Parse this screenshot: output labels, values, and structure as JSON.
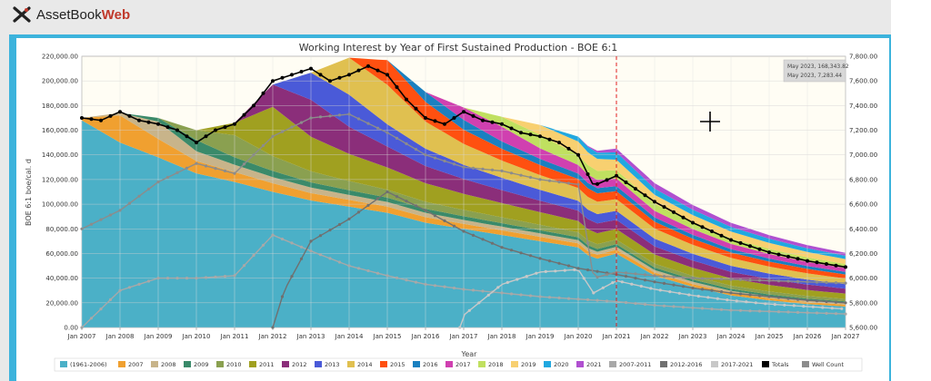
{
  "app": {
    "brand_main": "AssetBook",
    "brand_accent": "Web"
  },
  "chart_data": {
    "type": "area",
    "title": "Working Interest by Year of First Sustained Production - BOE 6:1",
    "xlabel": "Year",
    "ylabel": "BOE 6:1 boe/cal. d",
    "y2label": "",
    "ylim": [
      0,
      220000
    ],
    "y2lim": [
      5600,
      7800
    ],
    "y_ticks": [
      "0.00",
      "20,000.00",
      "40,000.00",
      "60,000.00",
      "80,000.00",
      "100,000.00",
      "120,000.00",
      "140,000.00",
      "160,000.00",
      "180,000.00",
      "200,000.00",
      "220,000.00"
    ],
    "y2_ticks": [
      "5,600.00",
      "5,800.00",
      "6,000.00",
      "6,200.00",
      "6,400.00",
      "6,600.00",
      "6,800.00",
      "7,000.00",
      "7,200.00",
      "7,400.00",
      "7,600.00",
      "7,800.00"
    ],
    "x_ticks": [
      "Jan 2007",
      "Jan 2008",
      "Jan 2009",
      "Jan 2010",
      "Jan 2011",
      "Jan 2012",
      "Jan 2013",
      "Jan 2014",
      "Jan 2015",
      "Jan 2016",
      "Jan 2017",
      "Jan 2018",
      "Jan 2019",
      "Jan 2020",
      "Jan 2021",
      "Jan 2022",
      "Jan 2023",
      "Jan 2024",
      "Jan 2025",
      "Jan 2026",
      "Jan 2027"
    ],
    "x_start": 2007,
    "x_end": 2027,
    "marker_year": 2021.0,
    "grid": true,
    "legend_position": "bottom",
    "tooltip": [
      "May 2023, 168,343.82",
      "May 2023, 7,283.44"
    ],
    "series": [
      {
        "name": "(1961-2006)",
        "color": "#4bb0c7",
        "x": [
          2007,
          2008,
          2009,
          2010,
          2011,
          2012,
          2013,
          2014,
          2015,
          2016,
          2017,
          2018,
          2019,
          2020,
          2020.4,
          2021,
          2022,
          2023,
          2024,
          2025,
          2026,
          2027
        ],
        "values": [
          168000,
          150000,
          138000,
          125000,
          118000,
          110000,
          103000,
          98000,
          93000,
          85000,
          80000,
          75000,
          70000,
          65000,
          55000,
          60000,
          42000,
          33000,
          26000,
          22000,
          19000,
          17000
        ]
      },
      {
        "name": "2007",
        "color": "#f0a030",
        "x": [
          2007,
          2008,
          2009,
          2010,
          2011,
          2012,
          2013,
          2014,
          2015,
          2016,
          2017,
          2018,
          2019,
          2020,
          2021,
          2022,
          2023,
          2024,
          2025,
          2026,
          2027
        ],
        "values": [
          2000,
          22000,
          15000,
          10000,
          8000,
          7000,
          6000,
          5500,
          5000,
          4500,
          4000,
          3800,
          3500,
          3200,
          3000,
          2500,
          2200,
          2000,
          1800,
          1600,
          1500
        ]
      },
      {
        "name": "2008",
        "color": "#c8b48a",
        "x": [
          2007,
          2008,
          2009,
          2010,
          2011,
          2012,
          2013,
          2014,
          2015,
          2016,
          2017,
          2018,
          2019,
          2020,
          2021,
          2022,
          2023,
          2024,
          2025,
          2026,
          2027
        ],
        "values": [
          0,
          2000,
          14000,
          8000,
          6000,
          5000,
          4500,
          4000,
          3800,
          3500,
          3200,
          3000,
          2800,
          2600,
          2400,
          2100,
          1900,
          1700,
          1500,
          1400,
          1300
        ]
      },
      {
        "name": "2009",
        "color": "#3a8a6a",
        "x": [
          2007,
          2008,
          2009,
          2010,
          2011,
          2012,
          2013,
          2014,
          2015,
          2016,
          2017,
          2018,
          2019,
          2020,
          2021,
          2022,
          2023,
          2024,
          2025,
          2026,
          2027
        ],
        "values": [
          0,
          0,
          3000,
          9000,
          6000,
          5000,
          4200,
          3800,
          3500,
          3200,
          3000,
          2800,
          2600,
          2400,
          2200,
          2000,
          1800,
          1600,
          1500,
          1400,
          1300
        ]
      },
      {
        "name": "2010",
        "color": "#8aa050",
        "x": [
          2007,
          2008,
          2009,
          2010,
          2011,
          2012,
          2013,
          2014,
          2015,
          2016,
          2017,
          2018,
          2019,
          2020,
          2021,
          2022,
          2023,
          2024,
          2025,
          2026,
          2027
        ],
        "values": [
          0,
          0,
          0,
          8000,
          18000,
          12000,
          9000,
          7500,
          6500,
          5800,
          5200,
          4800,
          4400,
          4000,
          3700,
          3200,
          2900,
          2600,
          2400,
          2200,
          2000
        ]
      },
      {
        "name": "2011",
        "color": "#a0a020",
        "x": [
          2007,
          2008,
          2009,
          2010,
          2011,
          2012,
          2013,
          2014,
          2015,
          2016,
          2017,
          2018,
          2019,
          2020,
          2021,
          2022,
          2023,
          2024,
          2025,
          2026,
          2027
        ],
        "values": [
          0,
          0,
          0,
          0,
          10000,
          40000,
          28000,
          22000,
          18000,
          15000,
          13000,
          11500,
          10200,
          9200,
          8500,
          7400,
          6600,
          5900,
          5300,
          4800,
          4400
        ]
      },
      {
        "name": "2012",
        "color": "#8b2e7a",
        "x": [
          2007,
          2008,
          2009,
          2010,
          2011,
          2012,
          2013,
          2014,
          2015,
          2016,
          2017,
          2018,
          2019,
          2020,
          2021,
          2022,
          2023,
          2024,
          2025,
          2026,
          2027
        ],
        "values": [
          0,
          0,
          0,
          0,
          0,
          18000,
          30000,
          22000,
          17000,
          14000,
          12000,
          10500,
          9300,
          8400,
          7600,
          6600,
          5900,
          5300,
          4800,
          4400,
          4000
        ]
      },
      {
        "name": "2013",
        "color": "#4a5ad8",
        "x": [
          2007,
          2008,
          2009,
          2010,
          2011,
          2012,
          2013,
          2014,
          2015,
          2016,
          2017,
          2018,
          2019,
          2020,
          2021,
          2022,
          2023,
          2024,
          2025,
          2026,
          2027
        ],
        "values": [
          0,
          0,
          0,
          0,
          0,
          0,
          22000,
          26000,
          18000,
          14000,
          11500,
          10000,
          8800,
          7900,
          7200,
          6200,
          5500,
          4900,
          4400,
          4000,
          3600
        ]
      },
      {
        "name": "2014",
        "color": "#e0c050",
        "x": [
          2007,
          2008,
          2009,
          2010,
          2011,
          2012,
          2013,
          2014,
          2015,
          2016,
          2017,
          2018,
          2019,
          2020,
          2021,
          2022,
          2023,
          2024,
          2025,
          2026,
          2027
        ],
        "values": [
          0,
          0,
          0,
          0,
          0,
          0,
          0,
          30000,
          32000,
          22000,
          17000,
          14000,
          12000,
          10500,
          9500,
          8200,
          7200,
          6400,
          5700,
          5100,
          4600
        ]
      },
      {
        "name": "2015",
        "color": "#ff5010",
        "x": [
          2007,
          2008,
          2009,
          2010,
          2011,
          2012,
          2013,
          2014,
          2015,
          2016,
          2017,
          2018,
          2019,
          2020,
          2021,
          2022,
          2023,
          2024,
          2025,
          2026,
          2027
        ],
        "values": [
          0,
          0,
          0,
          0,
          0,
          0,
          0,
          0,
          20000,
          16000,
          11500,
          9500,
          8200,
          7200,
          6500,
          5600,
          5000,
          4400,
          4000,
          3600,
          3300
        ]
      },
      {
        "name": "2016",
        "color": "#1a80c0",
        "x": [
          2007,
          2008,
          2009,
          2010,
          2011,
          2012,
          2013,
          2014,
          2015,
          2016,
          2017,
          2018,
          2019,
          2020,
          2021,
          2022,
          2023,
          2024,
          2025,
          2026,
          2027
        ],
        "values": [
          0,
          0,
          0,
          0,
          0,
          0,
          0,
          0,
          0,
          8000,
          8000,
          6000,
          5000,
          4400,
          4000,
          3500,
          3100,
          2800,
          2500,
          2300,
          2100
        ]
      },
      {
        "name": "2017",
        "color": "#d040b0",
        "x": [
          2007,
          2008,
          2009,
          2010,
          2011,
          2012,
          2013,
          2014,
          2015,
          2016,
          2017,
          2018,
          2019,
          2020,
          2021,
          2022,
          2023,
          2024,
          2025,
          2026,
          2027
        ],
        "values": [
          0,
          0,
          0,
          0,
          0,
          0,
          0,
          0,
          0,
          0,
          10000,
          12000,
          8500,
          7000,
          6200,
          5300,
          4700,
          4200,
          3800,
          3400,
          3100
        ]
      },
      {
        "name": "2018",
        "color": "#c0e060",
        "x": [
          2007,
          2008,
          2009,
          2010,
          2011,
          2012,
          2013,
          2014,
          2015,
          2016,
          2017,
          2018,
          2019,
          2020,
          2021,
          2022,
          2023,
          2024,
          2025,
          2026,
          2027
        ],
        "values": [
          0,
          0,
          0,
          0,
          0,
          0,
          0,
          0,
          0,
          0,
          0,
          8000,
          11000,
          8000,
          6800,
          5800,
          5100,
          4500,
          4000,
          3600,
          3300
        ]
      },
      {
        "name": "2019",
        "color": "#f8d070",
        "x": [
          2007,
          2008,
          2009,
          2010,
          2011,
          2012,
          2013,
          2014,
          2015,
          2016,
          2017,
          2018,
          2019,
          2020,
          2021,
          2022,
          2023,
          2024,
          2025,
          2026,
          2027
        ],
        "values": [
          0,
          0,
          0,
          0,
          0,
          0,
          0,
          0,
          0,
          0,
          0,
          0,
          8000,
          11000,
          8500,
          7200,
          6300,
          5500,
          4900,
          4400,
          4000
        ]
      },
      {
        "name": "2020",
        "color": "#20a8e0",
        "x": [
          2007,
          2008,
          2009,
          2010,
          2011,
          2012,
          2013,
          2014,
          2015,
          2016,
          2017,
          2018,
          2019,
          2020,
          2021,
          2022,
          2023,
          2024,
          2025,
          2026,
          2027
        ],
        "values": [
          0,
          0,
          0,
          0,
          0,
          0,
          0,
          0,
          0,
          0,
          0,
          0,
          0,
          4000,
          6000,
          5000,
          4300,
          3800,
          3400,
          3000,
          2700
        ]
      },
      {
        "name": "2021",
        "color": "#b050d0",
        "x": [
          2007,
          2008,
          2009,
          2010,
          2011,
          2012,
          2013,
          2014,
          2015,
          2016,
          2017,
          2018,
          2019,
          2020,
          2021,
          2022,
          2023,
          2024,
          2025,
          2026,
          2027
        ],
        "values": [
          0,
          0,
          0,
          0,
          0,
          0,
          0,
          0,
          0,
          0,
          0,
          0,
          0,
          0,
          3000,
          4500,
          3800,
          3300,
          2900,
          2600,
          2300
        ]
      }
    ],
    "line_series": [
      {
        "name": "2007-2011",
        "color": "#a8a8a8",
        "x": [
          2007,
          2008,
          2009,
          2010,
          2011,
          2012,
          2013,
          2014,
          2015,
          2016,
          2017,
          2018,
          2019,
          2020,
          2021,
          2022,
          2023,
          2024,
          2025,
          2026,
          2027
        ],
        "values": [
          0,
          30000,
          40000,
          40000,
          42000,
          75000,
          62000,
          50000,
          42000,
          35000,
          31000,
          28000,
          25000,
          23000,
          21000,
          18000,
          16000,
          14000,
          13000,
          12000,
          11000
        ]
      },
      {
        "name": "2012-2016",
        "color": "#707070",
        "x": [
          2012,
          2012.3,
          2013,
          2014,
          2015,
          2016,
          2017,
          2018,
          2019,
          2020,
          2021,
          2022,
          2023,
          2024,
          2025,
          2026,
          2027
        ],
        "values": [
          0,
          30000,
          70000,
          88000,
          110000,
          95000,
          78000,
          65000,
          56000,
          48000,
          43000,
          37000,
          32000,
          28000,
          25000,
          22000,
          20000
        ]
      },
      {
        "name": "2017-2021",
        "color": "#c8c8c8",
        "x": [
          2016.9,
          2017,
          2018,
          2019,
          2020,
          2020.4,
          2021,
          2022,
          2023,
          2024,
          2025,
          2026,
          2027
        ],
        "values": [
          0,
          10000,
          35000,
          45000,
          47000,
          28000,
          38000,
          31000,
          26000,
          22000,
          19000,
          17000,
          15000
        ]
      },
      {
        "name": "Totals",
        "color": "#000000",
        "x": [
          2007,
          2007.5,
          2008,
          2008.5,
          2009,
          2009.5,
          2010,
          2010.5,
          2011,
          2011.5,
          2012,
          2012.5,
          2013,
          2013.5,
          2014,
          2014.5,
          2015,
          2015.5,
          2016,
          2016.5,
          2017,
          2017.5,
          2018,
          2018.5,
          2019,
          2019.5,
          2020,
          2020.4,
          2021,
          2022,
          2023,
          2024,
          2025,
          2026,
          2027
        ],
        "values": [
          170000,
          168000,
          175000,
          168000,
          165000,
          160000,
          150000,
          160000,
          165000,
          180000,
          200000,
          205000,
          210000,
          200000,
          205000,
          212000,
          205000,
          185000,
          170000,
          165000,
          175000,
          168000,
          165000,
          158000,
          155000,
          150000,
          140000,
          115000,
          123000,
          102000,
          85000,
          71000,
          61000,
          54000,
          49000
        ]
      },
      {
        "name": "Well Count",
        "color": "#8c8c8c",
        "axis": "right",
        "x": [
          2007,
          2008,
          2009,
          2010,
          2011,
          2012,
          2013,
          2014,
          2015,
          2016,
          2017,
          2018,
          2019,
          2020,
          2020.4,
          2021,
          2022,
          2023,
          2024,
          2025,
          2026,
          2027
        ],
        "values": [
          6400,
          6550,
          6780,
          6930,
          6850,
          7150,
          7300,
          7330,
          7180,
          7000,
          6900,
          6870,
          6800,
          6760,
          6000,
          6050,
          6020,
          6000,
          5990,
          5980,
          5970,
          5960
        ]
      }
    ]
  }
}
